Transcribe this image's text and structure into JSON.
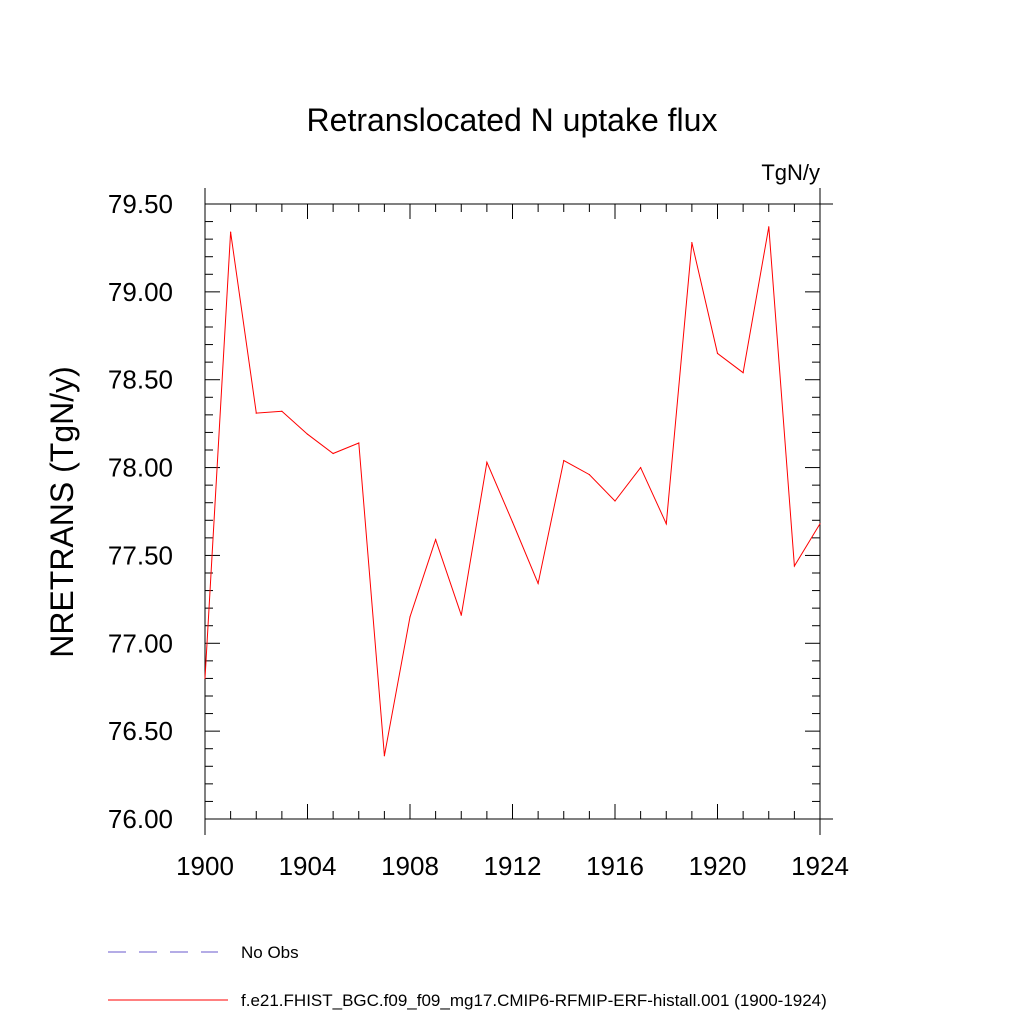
{
  "chart_data": {
    "type": "line",
    "title": "Retranslocated N uptake flux",
    "units": "TgN/y",
    "ylabel": "NRETRANS  (TgN/y)",
    "xlabel": "",
    "xlim": [
      1900,
      1924
    ],
    "ylim": [
      76.0,
      79.5
    ],
    "x_ticks": [
      1900,
      1904,
      1908,
      1912,
      1916,
      1920,
      1924
    ],
    "y_ticks": [
      76.0,
      76.5,
      77.0,
      77.5,
      78.0,
      78.5,
      79.0,
      79.5
    ],
    "y_tick_labels": [
      "76.00",
      "76.50",
      "77.00",
      "77.50",
      "78.00",
      "78.50",
      "79.00",
      "79.50"
    ],
    "grid": false,
    "legend_position": "bottom",
    "series": [
      {
        "name": "f.e21.FHIST_BGC.f09_f09_mg17.CMIP6-RFMIP-ERF-histall.001 (1900-1924)",
        "color": "#ff0000",
        "style": "solid",
        "x": [
          1900,
          1901,
          1902,
          1903,
          1904,
          1905,
          1906,
          1907,
          1908,
          1909,
          1910,
          1911,
          1912,
          1913,
          1914,
          1915,
          1916,
          1917,
          1918,
          1919,
          1920,
          1921,
          1922,
          1923,
          1924
        ],
        "values": [
          76.8,
          79.34,
          78.31,
          78.32,
          78.19,
          78.08,
          78.14,
          76.36,
          77.15,
          77.59,
          77.16,
          78.03,
          77.69,
          77.34,
          78.04,
          77.96,
          77.81,
          78.0,
          77.68,
          79.28,
          78.65,
          78.54,
          79.37,
          77.44,
          77.68
        ]
      },
      {
        "name": "No Obs",
        "color": "#6a5acd",
        "style": "dashed",
        "x": [],
        "values": []
      }
    ]
  }
}
